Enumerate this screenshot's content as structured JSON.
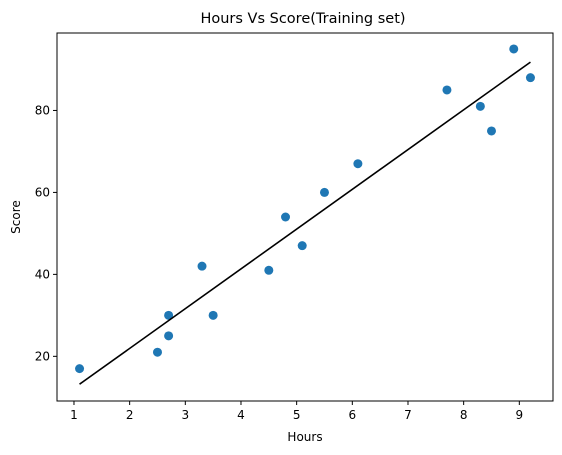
{
  "chart_data": {
    "type": "scatter",
    "title": "Hours Vs Score(Training set)",
    "xlabel": "Hours",
    "ylabel": "Score",
    "xlim": [
      0.695,
      9.605
    ],
    "ylim": [
      9.1,
      98.9
    ],
    "xticks": [
      1,
      2,
      3,
      4,
      5,
      6,
      7,
      8,
      9
    ],
    "yticks": [
      20,
      40,
      60,
      80
    ],
    "grid": false,
    "points": {
      "x": [
        1.1,
        2.5,
        2.7,
        2.7,
        3.3,
        3.5,
        4.5,
        4.8,
        5.1,
        5.5,
        6.1,
        7.7,
        8.3,
        8.5,
        8.9,
        9.2
      ],
      "y": [
        17,
        21,
        25,
        30,
        42,
        30,
        41,
        54,
        47,
        60,
        67,
        85,
        81,
        75,
        95,
        88
      ],
      "color": "#1f77b4"
    },
    "regression_line": {
      "x": [
        1.1,
        9.2
      ],
      "y": [
        13.2,
        91.8
      ],
      "color": "#000000"
    }
  }
}
